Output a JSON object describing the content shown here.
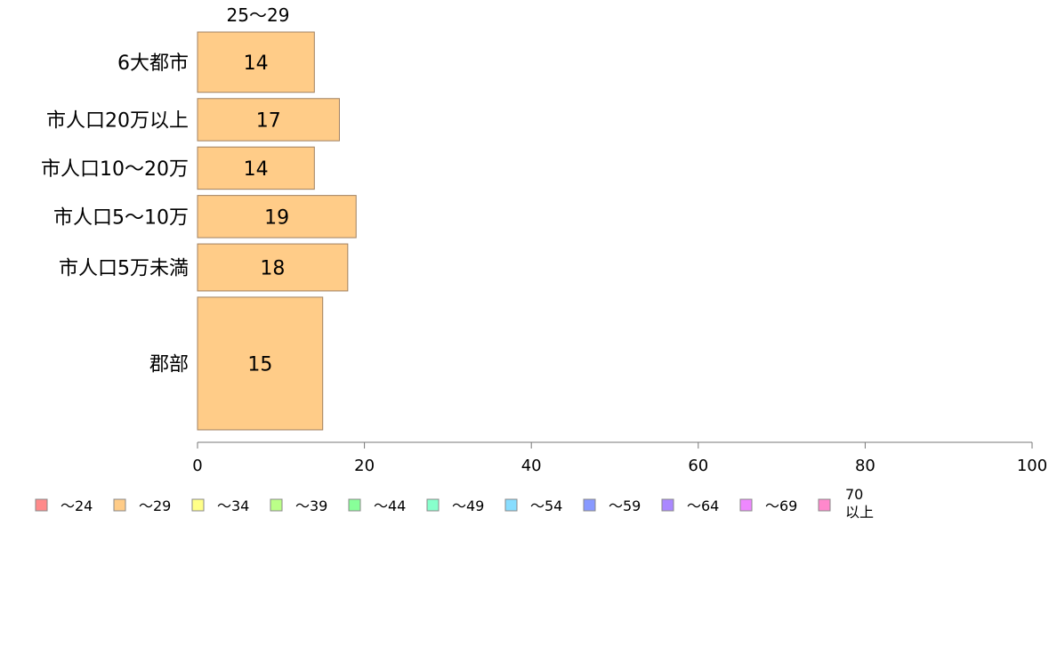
{
  "chart_data": {
    "type": "bar",
    "orientation": "horizontal",
    "stacked": true,
    "categories": [
      "6大都市",
      "市人口20万以上",
      "市人口10〜20万",
      "市人口5〜10万",
      "市人口5万未満",
      "郡部"
    ],
    "category_weights": [
      1,
      0.7,
      0.7,
      0.7,
      0.78,
      2.2
    ],
    "shown_series_header": "25〜29",
    "series": [
      {
        "name": "〜24",
        "color": "#ff8a8a",
        "values": [
          0,
          0,
          0,
          0,
          0,
          0
        ]
      },
      {
        "name": "〜29",
        "color": "#ffcc88",
        "values": [
          14,
          17,
          14,
          19,
          18,
          15
        ]
      },
      {
        "name": "〜34",
        "color": "#ffff88",
        "values": [
          0,
          0,
          0,
          0,
          0,
          0
        ]
      },
      {
        "name": "〜39",
        "color": "#bbff88",
        "values": [
          0,
          0,
          0,
          0,
          0,
          0
        ]
      },
      {
        "name": "〜44",
        "color": "#88ff99",
        "values": [
          0,
          0,
          0,
          0,
          0,
          0
        ]
      },
      {
        "name": "〜49",
        "color": "#88ffcc",
        "values": [
          0,
          0,
          0,
          0,
          0,
          0
        ]
      },
      {
        "name": "〜54",
        "color": "#88ddff",
        "values": [
          0,
          0,
          0,
          0,
          0,
          0
        ]
      },
      {
        "name": "〜59",
        "color": "#8899ff",
        "values": [
          0,
          0,
          0,
          0,
          0,
          0
        ]
      },
      {
        "name": "〜64",
        "color": "#aa88ff",
        "values": [
          0,
          0,
          0,
          0,
          0,
          0
        ]
      },
      {
        "name": "〜69",
        "color": "#ee88ff",
        "values": [
          0,
          0,
          0,
          0,
          0,
          0
        ]
      },
      {
        "name": "70\n以上",
        "color": "#ff88cc",
        "values": [
          0,
          0,
          0,
          0,
          0,
          0
        ]
      }
    ],
    "xlim": [
      0,
      100
    ],
    "xticks": [
      0,
      20,
      40,
      60,
      80,
      100
    ],
    "grid": false,
    "legend_position": "bottom"
  }
}
